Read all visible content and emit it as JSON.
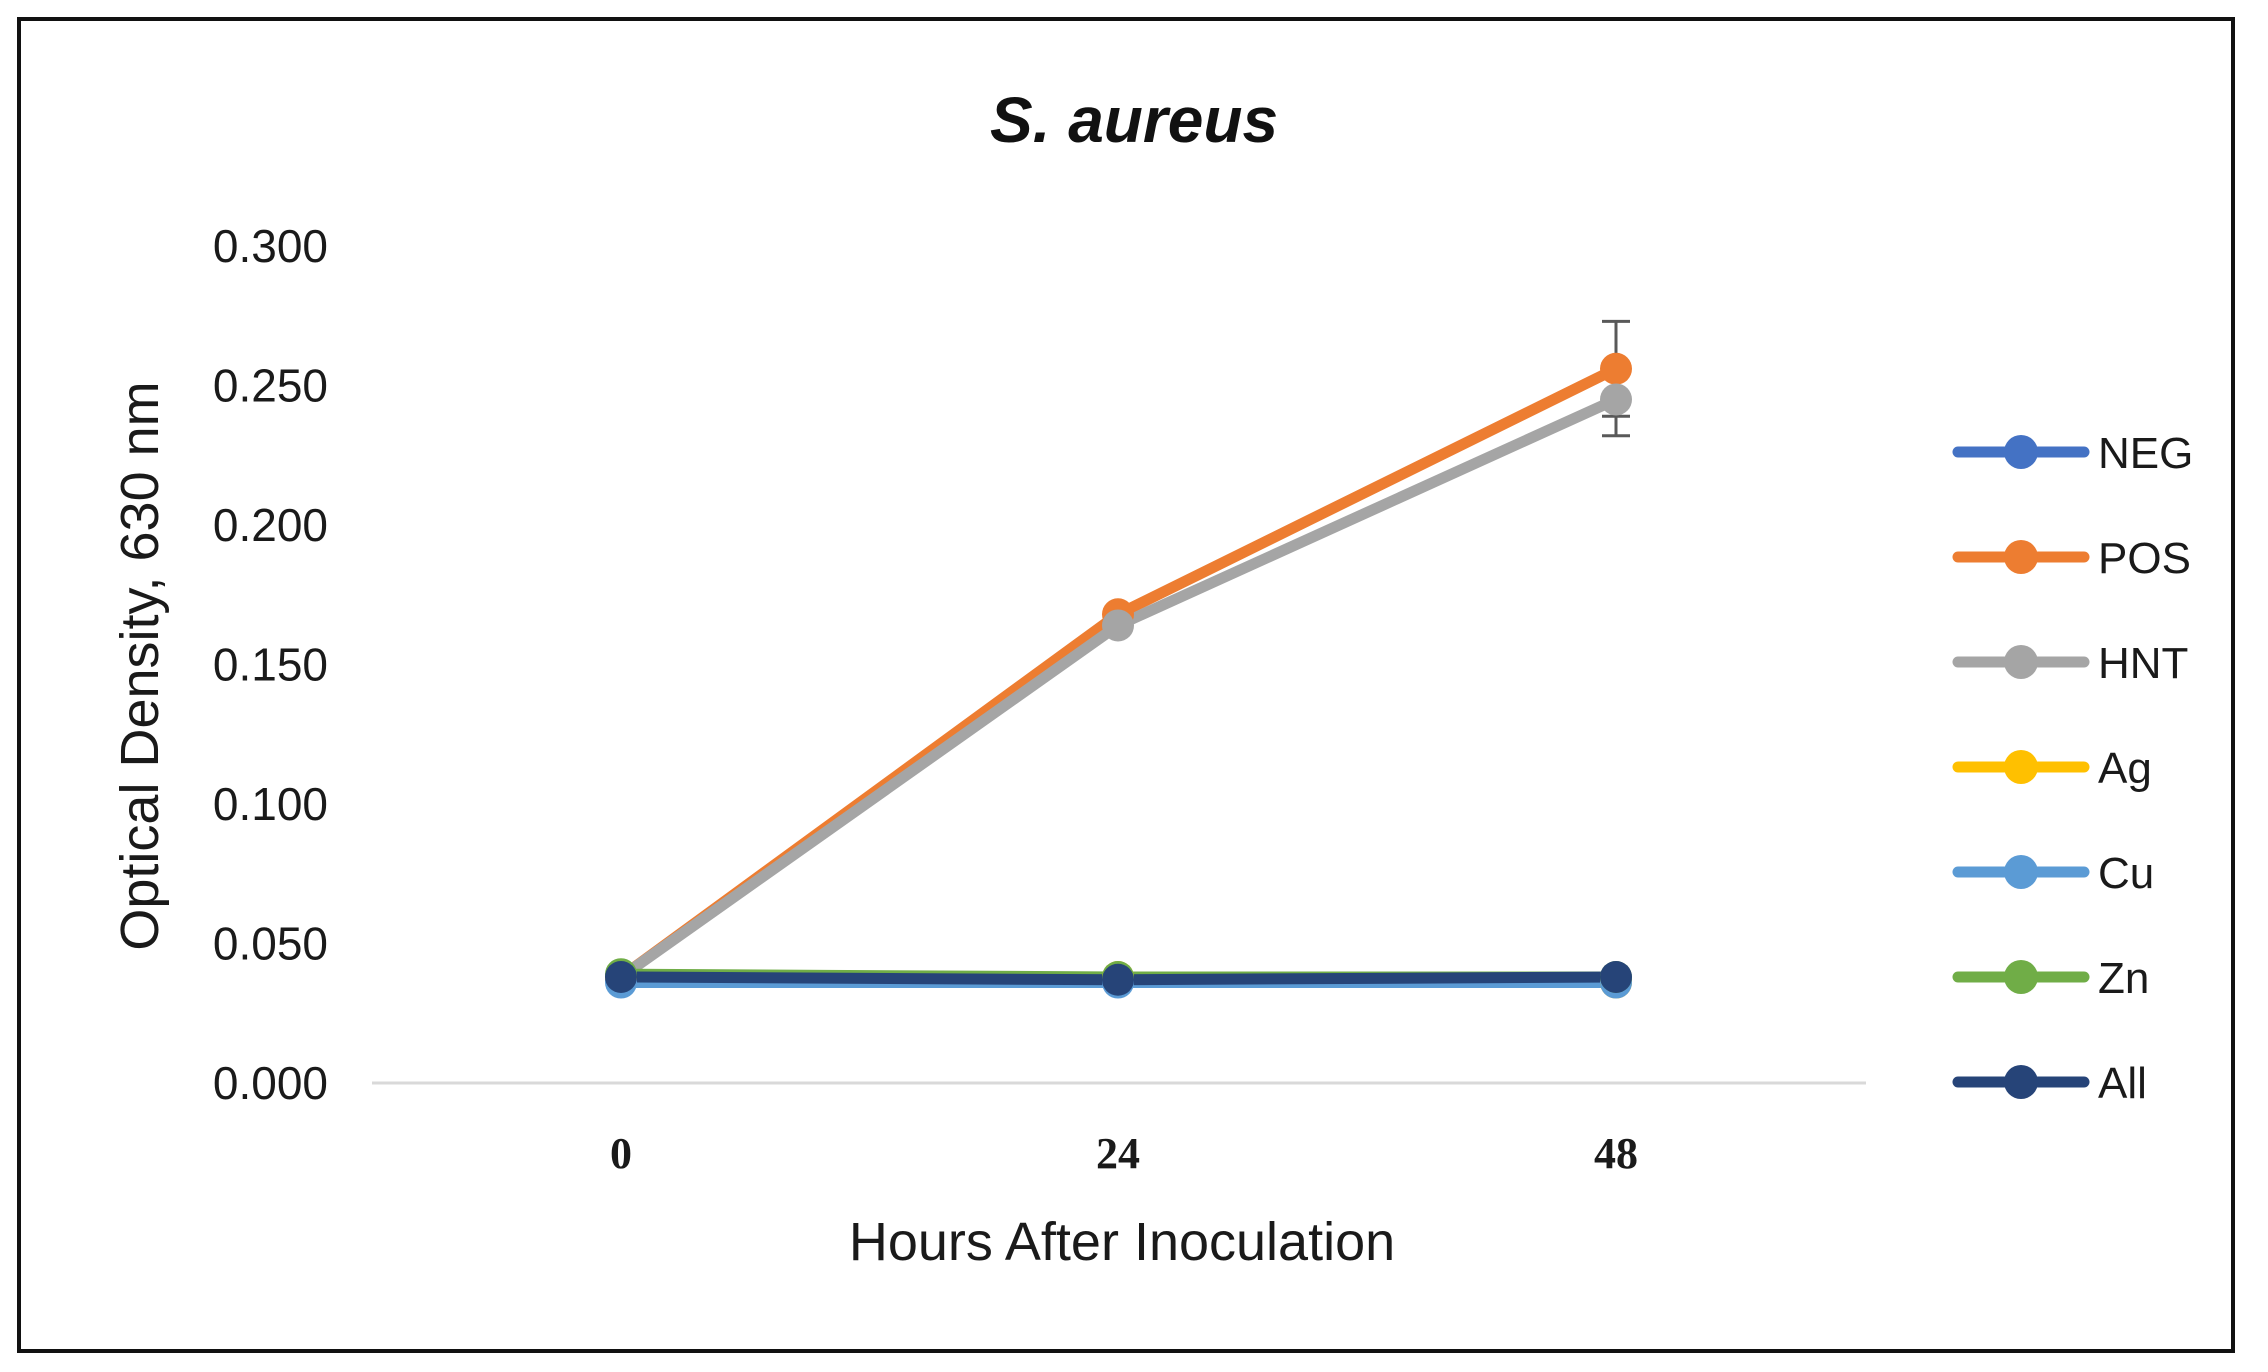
{
  "chart_data": {
    "type": "line",
    "title": "S. aureus",
    "xlabel": "Hours After Inoculation",
    "ylabel": "Optical Density, 630 nm",
    "categories": [
      "0",
      "24",
      "48"
    ],
    "ylim": [
      0,
      0.3
    ],
    "yticks": [
      "0.000",
      "0.050",
      "0.100",
      "0.150",
      "0.200",
      "0.250",
      "0.300"
    ],
    "grid": false,
    "legend_position": "right",
    "series": [
      {
        "name": "NEG",
        "color": "#4472C4",
        "values": [
          0.037,
          0.037,
          0.037
        ]
      },
      {
        "name": "POS",
        "color": "#ED7D31",
        "values": [
          0.038,
          0.168,
          0.256
        ],
        "error": [
          0,
          0.002,
          0.017
        ]
      },
      {
        "name": "HNT",
        "color": "#A5A5A5",
        "values": [
          0.038,
          0.164,
          0.245
        ],
        "error": [
          0,
          0.002,
          0.013
        ]
      },
      {
        "name": "Ag",
        "color": "#FFC000",
        "values": [
          0.038,
          0.038,
          0.036
        ]
      },
      {
        "name": "Cu",
        "color": "#5B9BD5",
        "values": [
          0.036,
          0.036,
          0.036
        ]
      },
      {
        "name": "Zn",
        "color": "#70AD47",
        "values": [
          0.039,
          0.038,
          0.038
        ]
      },
      {
        "name": "All",
        "color": "#264478",
        "values": [
          0.038,
          0.037,
          0.038
        ]
      }
    ]
  }
}
